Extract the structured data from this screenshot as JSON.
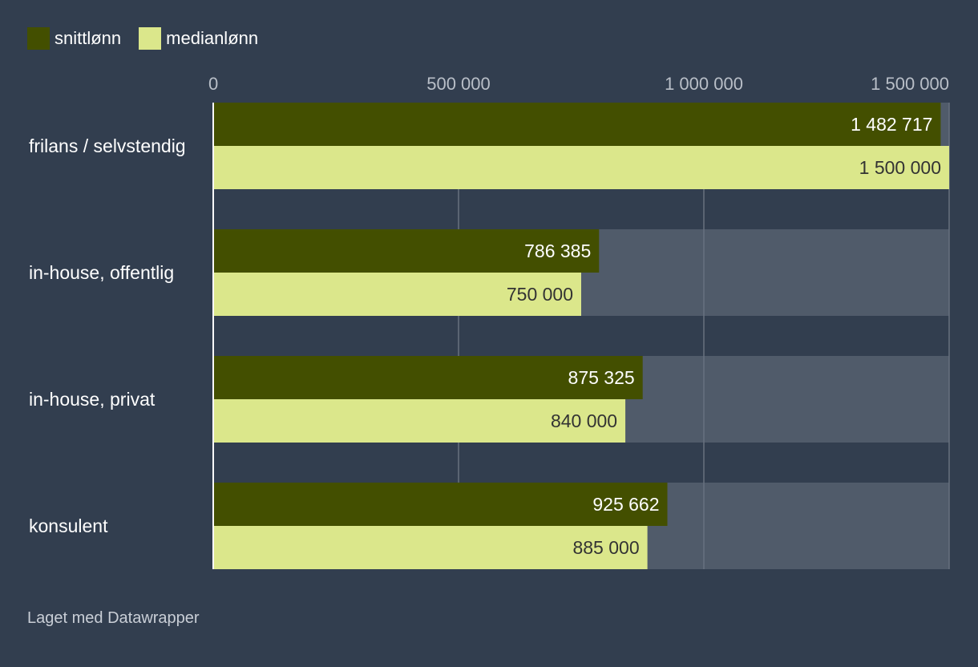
{
  "chart_data": {
    "type": "bar",
    "orientation": "horizontal",
    "categories": [
      "frilans / selvstendig",
      "in-house, offentlig",
      "in-house, privat",
      "konsulent"
    ],
    "series": [
      {
        "name": "snittlønn",
        "color": "#434f00",
        "label_color": "#ffffff",
        "values": [
          1482717,
          786385,
          875325,
          925662
        ],
        "value_labels": [
          "1 482 717",
          "786 385",
          "875 325",
          "925 662"
        ]
      },
      {
        "name": "medianlønn",
        "color": "#dbe78b",
        "label_color": "#333333",
        "values": [
          1500000,
          750000,
          840000,
          885000
        ],
        "value_labels": [
          "1 500 000",
          "750 000",
          "840 000",
          "885 000"
        ]
      }
    ],
    "xlim": [
      0,
      1500000
    ],
    "x_ticks": [
      0,
      500000,
      1000000,
      1500000
    ],
    "x_tick_labels": [
      "0",
      "500 000",
      "1 000 000",
      "1 500 000"
    ],
    "xlabel": "",
    "ylabel": "",
    "grid": true,
    "legend_position": "top-left",
    "background_color": "#323e4f",
    "track_color": "#505b6a"
  },
  "credit": "Laget med Datawrapper"
}
